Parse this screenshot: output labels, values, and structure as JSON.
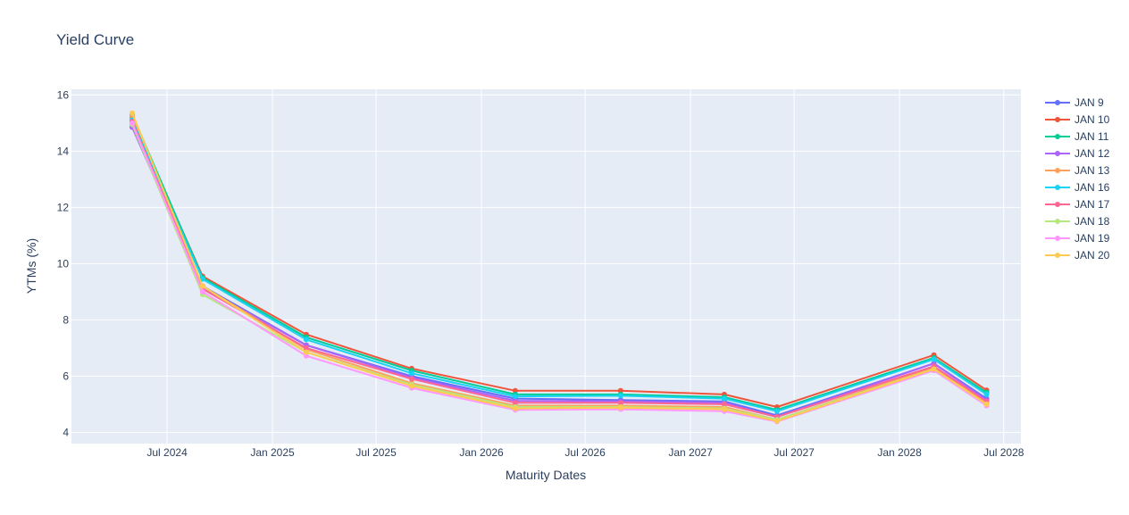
{
  "chart_data": {
    "type": "line",
    "title": "Yield Curve",
    "xlabel": "Maturity Dates",
    "ylabel": "YTMs (%)",
    "x": [
      "2024-05-01",
      "2024-09-01",
      "2025-03-01",
      "2025-09-01",
      "2026-03-01",
      "2026-09-01",
      "2027-03-01",
      "2027-06-01",
      "2028-03-01",
      "2028-06-01"
    ],
    "ylim": [
      3.6,
      16.2
    ],
    "xlim": [
      "2024-01-16",
      "2028-07-31"
    ],
    "yticks": [
      4,
      6,
      8,
      10,
      12,
      14,
      16
    ],
    "xticks": [
      {
        "date": "2024-07-01",
        "label": "Jul 2024"
      },
      {
        "date": "2025-01-01",
        "label": "Jan 2025"
      },
      {
        "date": "2025-07-01",
        "label": "Jul 2025"
      },
      {
        "date": "2026-01-01",
        "label": "Jan 2026"
      },
      {
        "date": "2026-07-01",
        "label": "Jul 2026"
      },
      {
        "date": "2027-01-01",
        "label": "Jan 2027"
      },
      {
        "date": "2027-07-01",
        "label": "Jul 2027"
      },
      {
        "date": "2028-01-01",
        "label": "Jan 2028"
      },
      {
        "date": "2028-07-01",
        "label": "Jul 2028"
      }
    ],
    "grid": true,
    "legend_position": "right",
    "series": [
      {
        "name": "JAN 9",
        "color": "#636efa",
        "values": [
          14.9,
          9.2,
          7.1,
          6.0,
          5.2,
          5.15,
          5.1,
          4.6,
          6.45,
          5.2
        ]
      },
      {
        "name": "JAN 10",
        "color": "#ef553b",
        "values": [
          15.2,
          9.55,
          7.48,
          6.27,
          5.48,
          5.48,
          5.35,
          4.9,
          6.75,
          5.5
        ]
      },
      {
        "name": "JAN 11",
        "color": "#00cc96",
        "values": [
          15.3,
          9.5,
          7.38,
          6.2,
          5.35,
          5.35,
          5.25,
          4.8,
          6.65,
          5.42
        ]
      },
      {
        "name": "JAN 12",
        "color": "#ab63fa",
        "values": [
          14.85,
          9.15,
          7.1,
          5.95,
          5.12,
          5.1,
          5.05,
          4.55,
          6.45,
          5.15
        ]
      },
      {
        "name": "JAN 13",
        "color": "#ffa15a",
        "values": [
          15.25,
          9.2,
          6.95,
          5.75,
          4.95,
          4.95,
          4.9,
          4.45,
          6.3,
          5.05
        ]
      },
      {
        "name": "JAN 16",
        "color": "#19d3f3",
        "values": [
          15.1,
          9.45,
          7.3,
          6.1,
          5.28,
          5.3,
          5.2,
          4.75,
          6.6,
          5.35
        ]
      },
      {
        "name": "JAN 17",
        "color": "#ff6692",
        "values": [
          15.05,
          9.1,
          7.0,
          5.9,
          5.05,
          5.05,
          5.0,
          4.55,
          6.35,
          5.1
        ]
      },
      {
        "name": "JAN 18",
        "color": "#b6e880",
        "values": [
          14.95,
          8.9,
          6.85,
          5.7,
          4.9,
          4.9,
          4.85,
          4.45,
          6.25,
          5.0
        ]
      },
      {
        "name": "JAN 19",
        "color": "#ff97ff",
        "values": [
          15.0,
          9.0,
          6.72,
          5.58,
          4.8,
          4.82,
          4.75,
          4.38,
          6.2,
          4.95
        ]
      },
      {
        "name": "JAN 20",
        "color": "#fecb52",
        "values": [
          15.35,
          9.2,
          6.85,
          5.65,
          4.85,
          4.88,
          4.82,
          4.4,
          6.25,
          5.0
        ]
      }
    ]
  }
}
